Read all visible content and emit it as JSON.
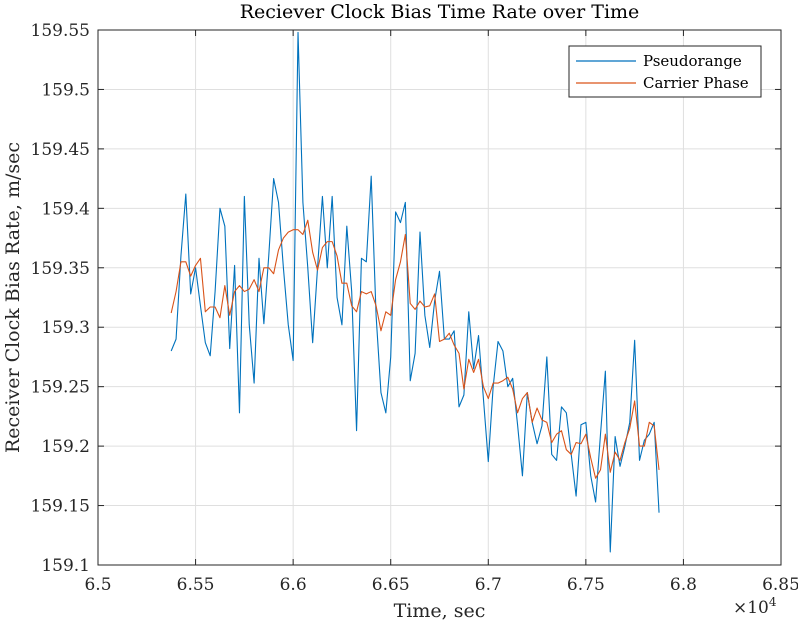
{
  "chart_data": {
    "type": "line",
    "title": "Reciever Clock Bias Time Rate over Time",
    "xlabel": "Time, sec",
    "ylabel": "Receiver Clock Bias Rate, m/sec",
    "x_exponent_label": "×10^4",
    "x_exponent_base": "×10",
    "x_exponent_power": "4",
    "xlim": [
      6.5,
      6.85
    ],
    "ylim": [
      159.1,
      159.55
    ],
    "grid": true,
    "legend_position": "top-right",
    "x_ticks": [
      6.5,
      6.55,
      6.6,
      6.65,
      6.7,
      6.75,
      6.8,
      6.85
    ],
    "x_tick_labels": [
      "6.5",
      "6.55",
      "6.6",
      "6.65",
      "6.7",
      "6.75",
      "6.8",
      "6.85"
    ],
    "y_ticks": [
      159.1,
      159.15,
      159.2,
      159.25,
      159.3,
      159.35,
      159.4,
      159.45,
      159.5,
      159.55
    ],
    "y_tick_labels": [
      "159.1",
      "159.15",
      "159.2",
      "159.25",
      "159.3",
      "159.35",
      "159.4",
      "159.45",
      "159.5",
      "159.55"
    ],
    "x_start": 6.5375,
    "x_step": 0.0025,
    "series": [
      {
        "name": "Pseudorange",
        "color": "#0072BD",
        "values": [
          159.28,
          159.29,
          159.36,
          159.412,
          159.328,
          159.35,
          159.318,
          159.287,
          159.276,
          159.33,
          159.4,
          159.385,
          159.282,
          159.352,
          159.228,
          159.41,
          159.302,
          159.253,
          159.358,
          159.303,
          159.36,
          159.425,
          159.405,
          159.35,
          159.302,
          159.272,
          159.548,
          159.405,
          159.35,
          159.287,
          159.35,
          159.41,
          159.35,
          159.41,
          159.325,
          159.302,
          159.385,
          159.33,
          159.213,
          159.358,
          159.355,
          159.427,
          159.31,
          159.245,
          159.228,
          159.275,
          159.397,
          159.388,
          159.405,
          159.255,
          159.278,
          159.38,
          159.31,
          159.283,
          159.322,
          159.347,
          159.29,
          159.29,
          159.297,
          159.233,
          159.243,
          159.313,
          159.265,
          159.293,
          159.24,
          159.187,
          159.25,
          159.288,
          159.28,
          159.25,
          159.257,
          159.218,
          159.175,
          159.245,
          159.22,
          159.202,
          159.217,
          159.275,
          159.193,
          159.188,
          159.233,
          159.228,
          159.193,
          159.158,
          159.218,
          159.22,
          159.175,
          159.153,
          159.21,
          159.263,
          159.111,
          159.208,
          159.183,
          159.2,
          159.22,
          159.289,
          159.188,
          159.205,
          159.21,
          159.22,
          159.144
        ]
      },
      {
        "name": "Carrier Phase",
        "color": "#D95319",
        "values": [
          159.312,
          159.33,
          159.355,
          159.355,
          159.343,
          159.352,
          159.358,
          159.313,
          159.317,
          159.317,
          159.308,
          159.335,
          159.31,
          159.33,
          159.335,
          159.33,
          159.332,
          159.34,
          159.33,
          159.35,
          159.35,
          159.345,
          159.365,
          159.375,
          159.38,
          159.382,
          159.382,
          159.378,
          159.39,
          159.363,
          159.348,
          159.367,
          159.372,
          159.372,
          159.36,
          159.337,
          159.337,
          159.318,
          159.313,
          159.33,
          159.328,
          159.33,
          159.318,
          159.297,
          159.313,
          159.31,
          159.34,
          159.355,
          159.378,
          159.32,
          159.315,
          159.322,
          159.317,
          159.318,
          159.328,
          159.288,
          159.29,
          159.295,
          159.285,
          159.278,
          159.248,
          159.273,
          159.262,
          159.273,
          159.25,
          159.24,
          159.253,
          159.253,
          159.255,
          159.258,
          159.248,
          159.228,
          159.24,
          159.245,
          159.22,
          159.232,
          159.222,
          159.22,
          159.203,
          159.21,
          159.213,
          159.197,
          159.193,
          159.203,
          159.202,
          159.21,
          159.19,
          159.173,
          159.18,
          159.21,
          159.178,
          159.195,
          159.188,
          159.203,
          159.215,
          159.238,
          159.2,
          159.2,
          159.22,
          159.217,
          159.18
        ]
      }
    ]
  }
}
